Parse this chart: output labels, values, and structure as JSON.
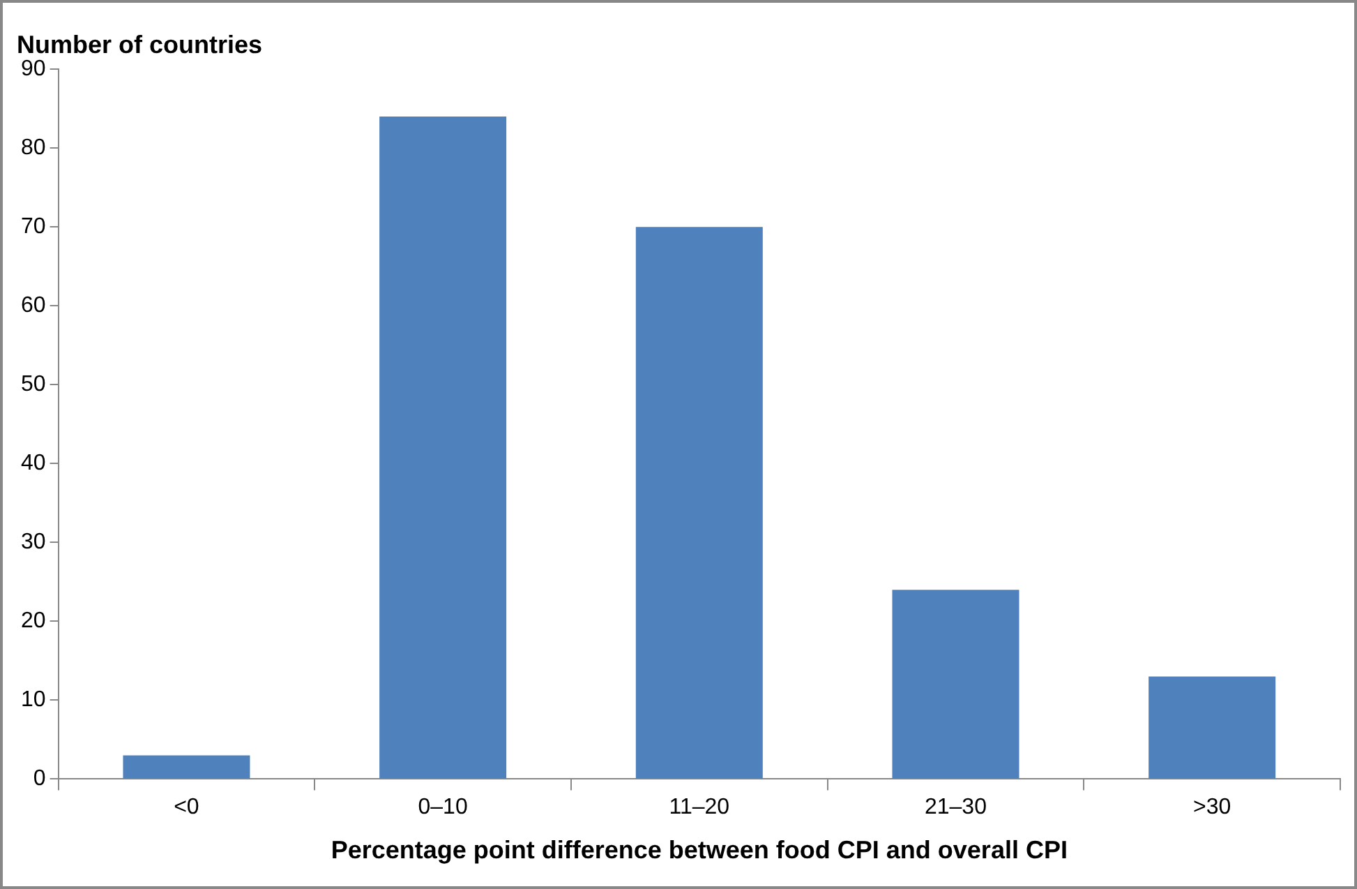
{
  "chart_data": {
    "type": "bar",
    "ylabel": "Number of countries",
    "xlabel": "Percentage point difference between food CPI and overall CPI",
    "categories": [
      "<0",
      "0–10",
      "11–20",
      "21–30",
      ">30"
    ],
    "values": [
      3,
      84,
      70,
      24,
      13
    ],
    "color": "#4f81bd",
    "ylim": [
      0,
      90
    ],
    "yticks": [
      0,
      10,
      20,
      30,
      40,
      50,
      60,
      70,
      80,
      90
    ],
    "grid": false,
    "legend": false
  }
}
